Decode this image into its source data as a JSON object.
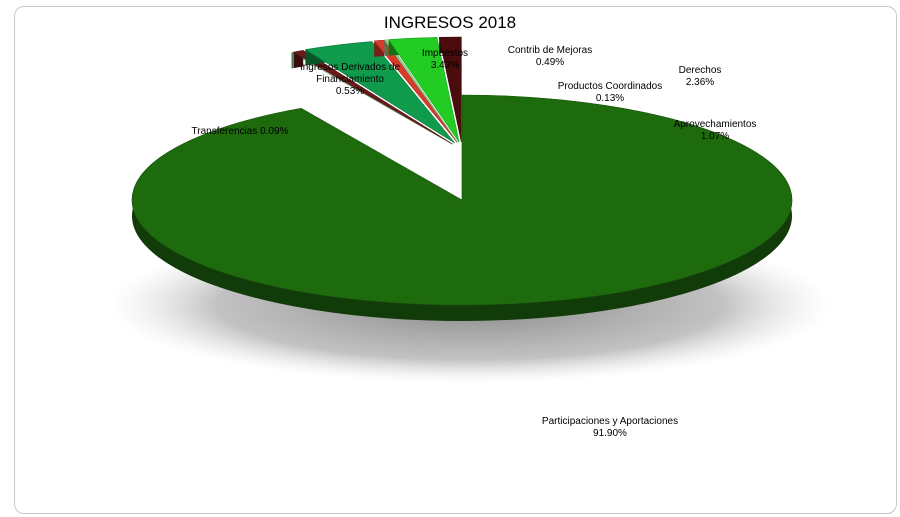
{
  "chart_data": {
    "type": "pie",
    "title": "INGRESOS 2018",
    "slices": [
      {
        "name": "Participaciones y Aportaciones",
        "value": 91.9,
        "label": "91.90%",
        "color": "#1e6b0e"
      },
      {
        "name": "Transferencias",
        "value": 0.09,
        "label": "0.09%",
        "color": "#9bcf9b"
      },
      {
        "name": "Ingresos Derivados de Financiamiento",
        "value": 0.53,
        "label": "0.53%",
        "color": "#6a1a1a"
      },
      {
        "name": "Impuestos",
        "value": 3.43,
        "label": "3.43%",
        "color": "#0f9a4c"
      },
      {
        "name": "Contrib de Mejoras",
        "value": 0.49,
        "label": "0.49%",
        "color": "#d93a2a"
      },
      {
        "name": "Productos Coordinados",
        "value": 0.13,
        "label": "0.13%",
        "color": "#8fd88f"
      },
      {
        "name": "Derechos",
        "value": 2.36,
        "label": "2.36%",
        "color": "#22cc22"
      },
      {
        "name": "Aprovechamientos",
        "value": 1.07,
        "label": "1.07%",
        "color": "#4a0c0c"
      }
    ],
    "legend": "none"
  }
}
